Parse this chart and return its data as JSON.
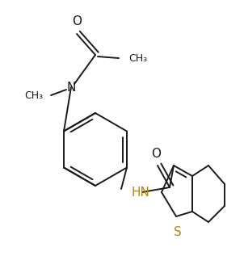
{
  "bg_color": "#ffffff",
  "line_color": "#1a1a1a",
  "S_color": "#b8860b",
  "HN_color": "#b8860b",
  "lw": 1.4,
  "font_size": 10
}
